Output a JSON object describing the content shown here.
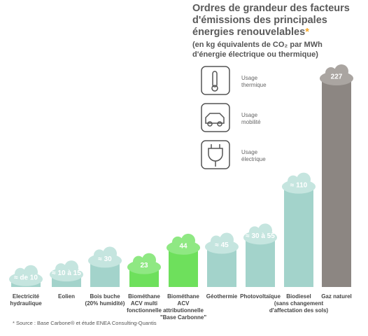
{
  "chart_data": {
    "type": "bar",
    "title": [
      "Ordres de grandeur des facteurs",
      "d'émissions des principales",
      "énergies renouvelables"
    ],
    "title_note": "*",
    "subtitle": [
      "(en kg équivalents de CO₂ par MWh",
      "d'énergie électrique ou thermique)"
    ],
    "legend": [
      [
        "Usage",
        "thermique"
      ],
      [
        "Usage",
        "mobilité"
      ],
      [
        "Usage",
        "électrique"
      ]
    ],
    "categories": [
      [
        "Electricité",
        "hydraulique"
      ],
      [
        "Eolien"
      ],
      [
        "Bois buche",
        "(20% humidité)"
      ],
      [
        "Biométhane",
        "ACV multi",
        "fonctionnelle"
      ],
      [
        "Biométhane",
        "ACV",
        "attributionnelle",
        "\"Base Carbonne\""
      ],
      [
        "Géothermie"
      ],
      [
        "Photovoltaïque"
      ],
      [
        "Biodiesel",
        "(sans changement",
        "d'affectation des sols)"
      ],
      [
        "Gaz naturel"
      ]
    ],
    "values": [
      10,
      15,
      30,
      23,
      44,
      45,
      55,
      110,
      227
    ],
    "value_labels": [
      "≈ de 10",
      "≈ 10 à 15",
      "≈ 30",
      "23",
      "44",
      "≈ 45",
      "≈ 30 à 55",
      "≈ 110",
      "227"
    ],
    "colors": [
      "#a3d3cb",
      "#a3d3cb",
      "#a3d3cb",
      "#6ee05c",
      "#6ee05c",
      "#a3d3cb",
      "#a3d3cb",
      "#a3d3cb",
      "#8c8682"
    ],
    "cloud_colors": [
      "#c5e5df",
      "#c5e5df",
      "#c5e5df",
      "#8fe883",
      "#8fe883",
      "#c5e5df",
      "#c5e5df",
      "#c5e5df",
      "#aaa5a1"
    ],
    "source": "* Source : Base Carbone® et étude ENEA Consulting-Quantis"
  }
}
